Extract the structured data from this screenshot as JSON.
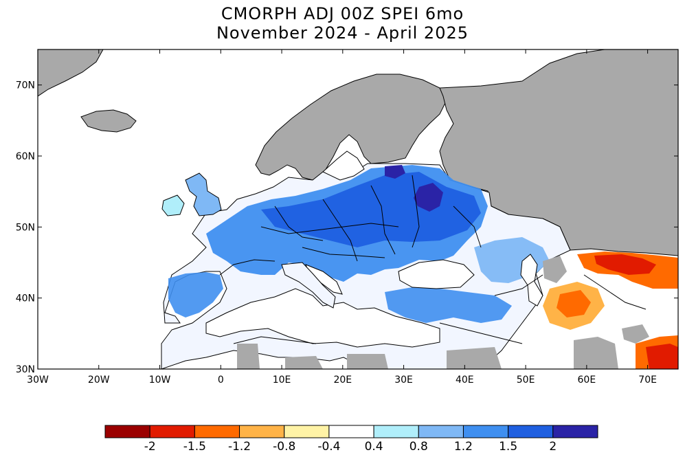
{
  "title": {
    "line1": "CMORPH ADJ 00Z SPEI 6mo",
    "line2": "November 2024 - April 2025"
  },
  "map": {
    "lon_range": [
      -30,
      75
    ],
    "lat_range": [
      30,
      75
    ],
    "x_ticks": [
      "30W",
      "20W",
      "10W",
      "0",
      "10E",
      "20E",
      "30E",
      "40E",
      "50E",
      "60E",
      "70E"
    ],
    "y_ticks": [
      "70N",
      "60N",
      "50N",
      "40N",
      "30N"
    ],
    "colors": {
      "no_data": "#a9a9a9",
      "ocean": "#ffffff",
      "coast": "#000000"
    }
  },
  "colorbar": {
    "labels": [
      "-2",
      "-1.5",
      "-1.2",
      "-0.8",
      "-0.4",
      "0.4",
      "0.8",
      "1.2",
      "1.5",
      "2"
    ],
    "colors": [
      "#9b0000",
      "#e11b00",
      "#ff6a00",
      "#ffb347",
      "#fff3a6",
      "#ffffff",
      "#b0eefa",
      "#7fb8f5",
      "#3f8ff0",
      "#1f5fe0",
      "#2a23a6"
    ]
  }
}
